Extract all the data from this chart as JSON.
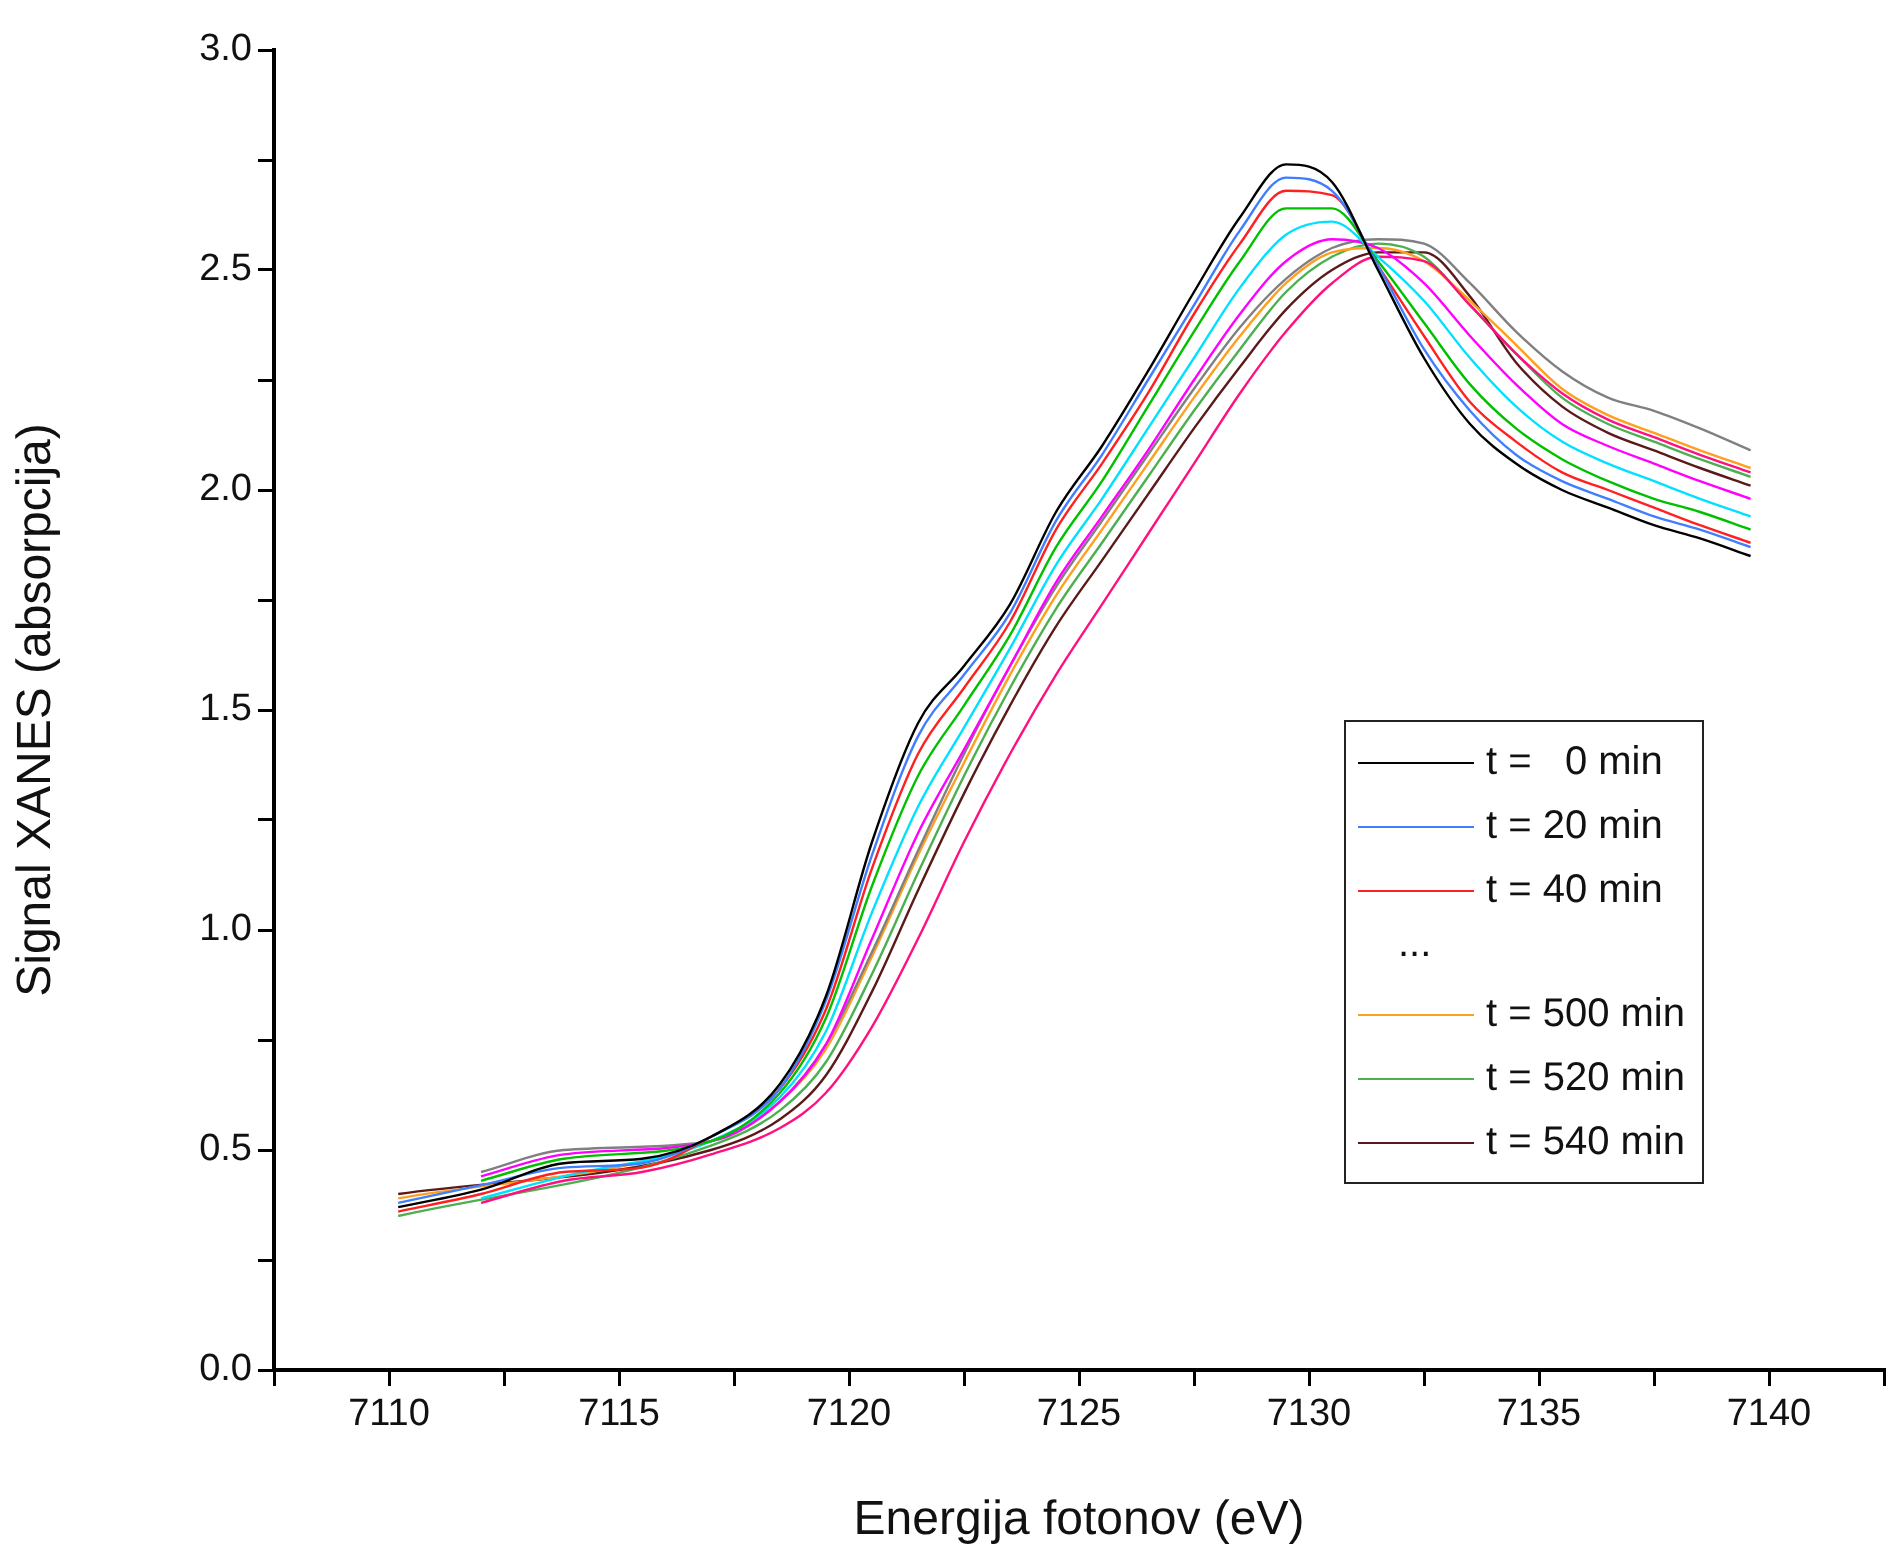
{
  "chart_data": {
    "type": "line",
    "xlabel": "Energija fotonov (eV)",
    "ylabel": "Signal XANES (absorpcija)",
    "x": [
      7110.2,
      7112,
      7113.8,
      7115.5,
      7117,
      7118.5,
      7119.5,
      7120.5,
      7121.5,
      7122.5,
      7123.5,
      7124.5,
      7125.5,
      7126.5,
      7127.5,
      7128.5,
      7129.5,
      7130.5,
      7131.5,
      7132.5,
      7133.5,
      7134.5,
      7135.5,
      7136.5,
      7137.5,
      7138.5,
      7139.6
    ],
    "series": [
      {
        "name": "t =   0 min",
        "color": "#000000",
        "values": [
          0.37,
          0.41,
          0.47,
          0.48,
          0.53,
          0.65,
          0.85,
          1.2,
          1.47,
          1.6,
          1.74,
          1.95,
          2.1,
          2.27,
          2.45,
          2.62,
          2.74,
          2.7,
          2.5,
          2.3,
          2.15,
          2.06,
          2.0,
          1.96,
          1.92,
          1.89,
          1.85
        ]
      },
      {
        "name": "t = 20 min",
        "color": "#3f7fff",
        "values": [
          0.38,
          0.42,
          0.46,
          0.47,
          0.53,
          0.64,
          0.84,
          1.17,
          1.44,
          1.58,
          1.72,
          1.93,
          2.08,
          2.25,
          2.42,
          2.59,
          2.71,
          2.68,
          2.51,
          2.32,
          2.18,
          2.08,
          2.02,
          1.98,
          1.94,
          1.91,
          1.87
        ]
      },
      {
        "name": "t = 40 min",
        "color": "#ff2020",
        "values": [
          0.36,
          0.4,
          0.45,
          0.46,
          0.53,
          0.64,
          0.82,
          1.14,
          1.4,
          1.55,
          1.7,
          1.91,
          2.06,
          2.22,
          2.4,
          2.56,
          2.68,
          2.67,
          2.51,
          2.35,
          2.2,
          2.11,
          2.04,
          2.0,
          1.96,
          1.92,
          1.88
        ]
      },
      {
        "color": "#00c000",
        "values": [
          null,
          0.43,
          0.48,
          null,
          0.52,
          0.63,
          0.8,
          1.1,
          1.35,
          1.51,
          1.67,
          1.87,
          2.02,
          2.19,
          2.36,
          2.52,
          2.64,
          2.64,
          2.52,
          2.38,
          2.24,
          2.14,
          2.07,
          2.02,
          1.98,
          1.95,
          1.91
        ]
      },
      {
        "color": "#00e0ff",
        "values": [
          null,
          0.39,
          0.44,
          null,
          0.52,
          0.62,
          0.77,
          1.04,
          1.28,
          1.46,
          1.64,
          1.83,
          1.98,
          2.14,
          2.3,
          2.46,
          2.58,
          2.61,
          2.53,
          2.43,
          2.3,
          2.19,
          2.11,
          2.06,
          2.02,
          1.98,
          1.94
        ]
      },
      {
        "color": "#ff00ff",
        "values": [
          null,
          0.44,
          0.49,
          null,
          0.52,
          0.61,
          0.74,
          0.98,
          1.22,
          1.41,
          1.6,
          1.79,
          1.94,
          2.09,
          2.25,
          2.4,
          2.52,
          2.57,
          2.55,
          2.47,
          2.35,
          2.24,
          2.15,
          2.1,
          2.06,
          2.02,
          1.98
        ]
      },
      {
        "color": "#808080",
        "values": [
          null,
          0.45,
          0.5,
          null,
          0.52,
          0.61,
          0.74,
          0.95,
          1.18,
          1.4,
          1.6,
          1.78,
          1.93,
          2.08,
          2.23,
          2.37,
          2.48,
          2.55,
          2.57,
          2.56,
          2.47,
          2.36,
          2.27,
          2.21,
          2.18,
          2.14,
          2.09
        ]
      },
      {
        "color": "#ff1080",
        "values": [
          null,
          0.38,
          0.43,
          0.45,
          0.49,
          0.55,
          0.63,
          0.78,
          0.98,
          1.2,
          1.4,
          1.58,
          1.74,
          1.9,
          2.06,
          2.22,
          2.36,
          2.47,
          2.53,
          2.52,
          2.42,
          2.31,
          2.22,
          2.16,
          2.12,
          2.08,
          2.04
        ]
      },
      {
        "name": "t = 500 min",
        "color": "#ff9f1f",
        "values": [
          0.39,
          null,
          null,
          null,
          0.52,
          0.61,
          0.73,
          0.94,
          1.17,
          1.38,
          1.58,
          1.76,
          1.91,
          2.06,
          2.21,
          2.35,
          2.47,
          2.54,
          2.55,
          2.52,
          2.43,
          2.33,
          2.23,
          2.17,
          2.13,
          2.09,
          2.05
        ]
      },
      {
        "name": "t = 520 min",
        "color": "#4caf50",
        "values": [
          0.35,
          null,
          null,
          null,
          0.51,
          0.59,
          0.7,
          0.9,
          1.13,
          1.35,
          1.55,
          1.73,
          1.88,
          2.03,
          2.18,
          2.32,
          2.45,
          2.53,
          2.56,
          2.53,
          2.42,
          2.31,
          2.21,
          2.15,
          2.11,
          2.07,
          2.03
        ]
      },
      {
        "name": "t = 540 min",
        "color": "#5a1a1a",
        "values": [
          0.4,
          null,
          null,
          null,
          0.5,
          0.57,
          0.67,
          0.86,
          1.09,
          1.31,
          1.51,
          1.69,
          1.84,
          1.99,
          2.14,
          2.28,
          2.41,
          2.5,
          2.54,
          2.54,
          2.44,
          2.29,
          2.19,
          2.13,
          2.09,
          2.05,
          2.01
        ]
      }
    ],
    "xlim": [
      7107.5,
      7142.5
    ],
    "xticks": [
      {
        "value": 7107.5,
        "label": null
      },
      7110,
      {
        "value": 7112.5,
        "label": null
      },
      7115,
      {
        "value": 7117.5,
        "label": null
      },
      7120,
      {
        "value": 7122.5,
        "label": null
      },
      7125,
      {
        "value": 7127.5,
        "label": null
      },
      7130,
      {
        "value": 7132.5,
        "label": null
      },
      7135,
      {
        "value": 7137.5,
        "label": null
      },
      7140,
      {
        "value": 7142.5,
        "label": null
      }
    ],
    "ylim": [
      0,
      3
    ],
    "yticks": [
      {
        "value": 0,
        "label": "0.0"
      },
      {
        "value": 0.25,
        "label": null
      },
      {
        "value": 0.5,
        "label": "0.5"
      },
      {
        "value": 0.75,
        "label": null
      },
      {
        "value": 1,
        "label": "1.0"
      },
      {
        "value": 1.25,
        "label": null
      },
      {
        "value": 1.5,
        "label": "1.5"
      },
      {
        "value": 1.75,
        "label": null
      },
      {
        "value": 2,
        "label": "2.0"
      },
      {
        "value": 2.25,
        "label": null
      },
      {
        "value": 2.5,
        "label": "2.5"
      },
      {
        "value": 2.75,
        "label": null
      },
      {
        "value": 3,
        "label": "3.0"
      }
    ],
    "annotations": [
      "..."
    ],
    "grid": false,
    "legend": "right",
    "marker": "none",
    "line_style": "solid"
  }
}
